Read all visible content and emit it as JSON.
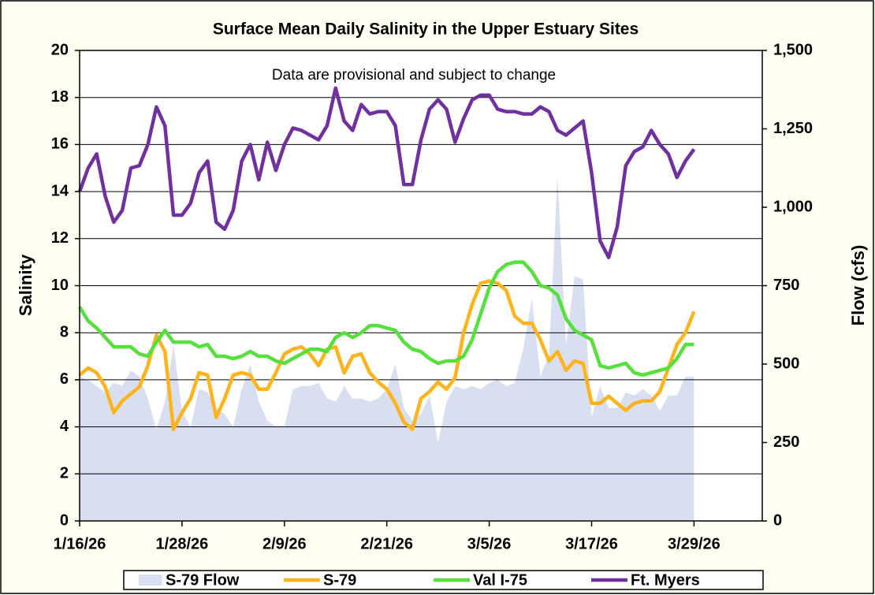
{
  "chart_data": {
    "type": "line",
    "title": "Surface Mean Daily Salinity in the Upper Estuary Sites",
    "annotation": "Data are provisional and subject to change",
    "y_label": "Salinity",
    "y2_label": "Flow (cfs)",
    "x": [
      "1/16/26",
      "1/17/26",
      "1/18/26",
      "1/19/26",
      "1/20/26",
      "1/21/26",
      "1/22/26",
      "1/23/26",
      "1/24/26",
      "1/25/26",
      "1/26/26",
      "1/27/26",
      "1/28/26",
      "1/29/26",
      "1/30/26",
      "1/31/26",
      "2/1/26",
      "2/2/26",
      "2/3/26",
      "2/4/26",
      "2/5/26",
      "2/6/26",
      "2/7/26",
      "2/8/26",
      "2/9/26",
      "2/10/26",
      "2/11/26",
      "2/12/26",
      "2/13/26",
      "2/14/26",
      "2/15/26",
      "2/16/26",
      "2/17/26",
      "2/18/26",
      "2/19/26",
      "2/20/26",
      "2/21/26",
      "2/22/26",
      "2/23/26",
      "2/24/26",
      "2/25/26",
      "2/26/26",
      "2/27/26",
      "2/28/26",
      "3/1/26",
      "3/2/26",
      "3/3/26",
      "3/4/26",
      "3/5/26",
      "3/6/26",
      "3/7/26",
      "3/8/26",
      "3/9/26",
      "3/10/26",
      "3/11/26",
      "3/12/26",
      "3/13/26",
      "3/14/26",
      "3/15/26",
      "3/16/26",
      "3/17/26",
      "3/18/26",
      "3/19/26",
      "3/20/26",
      "3/21/26",
      "3/22/26",
      "3/23/26",
      "3/24/26",
      "3/25/26",
      "3/26/26",
      "3/27/26",
      "3/28/26",
      "3/29/26"
    ],
    "xlim": [
      "1/16/26",
      "4/6/26"
    ],
    "xticks": [
      "1/16/26",
      "1/28/26",
      "2/9/26",
      "2/21/26",
      "3/5/26",
      "3/17/26",
      "3/29/26"
    ],
    "ylim": [
      0,
      20
    ],
    "yticks": [
      0,
      2,
      4,
      6,
      8,
      10,
      12,
      14,
      16,
      18,
      20
    ],
    "y2lim": [
      0,
      1500
    ],
    "y2ticks": [
      0,
      250,
      500,
      750,
      {
        "value": 1000,
        "label": "1,000"
      },
      {
        "value": 1250,
        "label": "1,250"
      },
      {
        "value": 1500,
        "label": "1,500"
      }
    ],
    "grid": true,
    "legend": "bottom",
    "series": [
      {
        "name": "S-79 Flow",
        "type": "area",
        "axis": "y2",
        "color": "#d7dff0",
        "values": [
          460,
          450,
          430,
          410,
          440,
          430,
          480,
          460,
          390,
          290,
          380,
          560,
          350,
          300,
          420,
          410,
          360,
          340,
          300,
          420,
          500,
          380,
          320,
          300,
          300,
          420,
          430,
          430,
          440,
          390,
          380,
          430,
          390,
          390,
          380,
          390,
          420,
          500,
          360,
          320,
          340,
          400,
          250,
          380,
          430,
          420,
          430,
          420,
          440,
          450,
          430,
          440,
          550,
          710,
          460,
          530,
          1100,
          560,
          780,
          770,
          330,
          430,
          360,
          360,
          410,
          400,
          420,
          400,
          350,
          400,
          400,
          460,
          460
        ]
      },
      {
        "name": "S-79",
        "color": "#ffb31a",
        "values": [
          6.2,
          6.5,
          6.3,
          5.7,
          4.6,
          5.1,
          5.4,
          5.7,
          6.6,
          7.9,
          7.2,
          3.9,
          4.6,
          5.2,
          6.3,
          6.2,
          4.4,
          5.2,
          6.2,
          6.3,
          6.2,
          5.6,
          5.6,
          6.3,
          7.1,
          7.3,
          7.4,
          7.1,
          6.6,
          7.3,
          7.4,
          6.3,
          7.0,
          7.1,
          6.3,
          5.9,
          5.6,
          5.0,
          4.2,
          3.9,
          5.2,
          5.5,
          5.9,
          5.6,
          6.1,
          8.0,
          9.2,
          10.1,
          10.2,
          10.1,
          9.8,
          8.7,
          8.4,
          8.4,
          7.7,
          6.8,
          7.2,
          6.4,
          6.8,
          6.7,
          5.0,
          5.0,
          5.3,
          5.0,
          4.7,
          5.0,
          5.1,
          5.1,
          5.5,
          6.5,
          7.5,
          8.0,
          8.9
        ]
      },
      {
        "name": "Val I-75",
        "color": "#55e03c",
        "values": [
          9.1,
          8.5,
          8.2,
          7.8,
          7.4,
          7.4,
          7.4,
          7.1,
          7.0,
          7.6,
          8.1,
          7.6,
          7.6,
          7.6,
          7.4,
          7.5,
          7.0,
          7.0,
          6.9,
          7.0,
          7.2,
          7.0,
          7.0,
          6.8,
          6.7,
          6.9,
          7.1,
          7.3,
          7.3,
          7.2,
          7.8,
          8.0,
          7.8,
          8.0,
          8.3,
          8.3,
          8.2,
          8.1,
          7.6,
          7.3,
          7.2,
          6.9,
          6.7,
          6.8,
          6.8,
          7.0,
          7.7,
          8.8,
          9.9,
          10.6,
          10.9,
          11.0,
          11.0,
          10.6,
          10.0,
          9.9,
          9.6,
          8.6,
          8.1,
          7.9,
          7.7,
          6.6,
          6.5,
          6.6,
          6.7,
          6.3,
          6.2,
          6.3,
          6.4,
          6.5,
          6.9,
          7.5,
          7.5
        ]
      },
      {
        "name": "Ft. Myers",
        "color": "#7030a0",
        "values": [
          14.0,
          15.0,
          15.6,
          13.8,
          12.7,
          13.2,
          15.0,
          15.1,
          16.0,
          17.6,
          16.8,
          13.0,
          13.0,
          13.5,
          14.8,
          15.3,
          12.7,
          12.4,
          13.2,
          15.3,
          16.0,
          14.5,
          16.1,
          14.9,
          16.0,
          16.7,
          16.6,
          16.4,
          16.2,
          16.8,
          18.4,
          17.0,
          16.6,
          17.7,
          17.3,
          17.4,
          17.4,
          16.8,
          14.3,
          14.3,
          16.2,
          17.5,
          17.9,
          17.5,
          16.1,
          17.1,
          17.9,
          18.1,
          18.1,
          17.5,
          17.4,
          17.4,
          17.3,
          17.3,
          17.6,
          17.4,
          16.6,
          16.4,
          16.7,
          17.0,
          14.8,
          11.9,
          11.2,
          12.5,
          15.1,
          15.7,
          15.9,
          16.6,
          16.0,
          15.6,
          14.6,
          15.3,
          15.8
        ]
      }
    ]
  }
}
